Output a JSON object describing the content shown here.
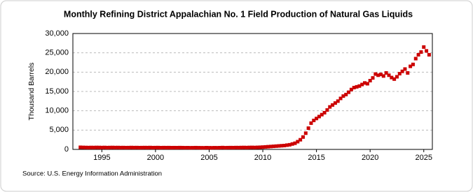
{
  "chart_data": {
    "type": "scatter",
    "title": "Monthly Refining District Appalachian No. 1 Field Production of Natural Gas Liquids",
    "y_label": "Thousand Barrels",
    "source": "Source: U.S. Energy Information Administration",
    "color": "#cc0000",
    "grid": true,
    "xlim": [
      1992.3,
      2025.8
    ],
    "xticks": [
      1995,
      2000,
      2005,
      2010,
      2015,
      2020,
      2025
    ],
    "ylim": [
      0,
      30000
    ],
    "yticks": [
      0,
      {
        "value": 5000,
        "label": "5,000"
      },
      {
        "value": 10000,
        "label": "10,000"
      },
      {
        "value": 15000,
        "label": "15,000"
      },
      {
        "value": 20000,
        "label": "20,000"
      },
      {
        "value": 25000,
        "label": "25,000"
      },
      {
        "value": 30000,
        "label": "30,000"
      }
    ],
    "x": [
      1993,
      1993.25,
      1993.5,
      1993.75,
      1994,
      1994.25,
      1994.5,
      1994.75,
      1995,
      1995.25,
      1995.5,
      1995.75,
      1996,
      1996.25,
      1996.5,
      1996.75,
      1997,
      1997.25,
      1997.5,
      1997.75,
      1998,
      1998.25,
      1998.5,
      1998.75,
      1999,
      1999.25,
      1999.5,
      1999.75,
      2000,
      2000.25,
      2000.5,
      2000.75,
      2001,
      2001.25,
      2001.5,
      2001.75,
      2002,
      2002.25,
      2002.5,
      2002.75,
      2003,
      2003.25,
      2003.5,
      2003.75,
      2004,
      2004.25,
      2004.5,
      2004.75,
      2005,
      2005.25,
      2005.5,
      2005.75,
      2006,
      2006.25,
      2006.5,
      2006.75,
      2007,
      2007.25,
      2007.5,
      2007.75,
      2008,
      2008.25,
      2008.5,
      2008.75,
      2009,
      2009.25,
      2009.5,
      2009.75,
      2010,
      2010.25,
      2010.5,
      2010.75,
      2011,
      2011.25,
      2011.5,
      2011.75,
      2012,
      2012.25,
      2012.5,
      2012.75,
      2013,
      2013.25,
      2013.5,
      2013.75,
      2014,
      2014.25,
      2014.5,
      2014.75,
      2015,
      2015.25,
      2015.5,
      2015.75,
      2016,
      2016.25,
      2016.5,
      2016.75,
      2017,
      2017.25,
      2017.5,
      2017.75,
      2018,
      2018.25,
      2018.5,
      2018.75,
      2019,
      2019.25,
      2019.5,
      2019.75,
      2020,
      2020.25,
      2020.5,
      2020.75,
      2021,
      2021.25,
      2021.5,
      2021.75,
      2022,
      2022.25,
      2022.5,
      2022.75,
      2023,
      2023.25,
      2023.5,
      2023.75,
      2024,
      2024.25,
      2024.5,
      2024.75,
      2025,
      2025.25,
      2025.5
    ],
    "values": [
      550,
      520,
      500,
      480,
      500,
      490,
      510,
      500,
      480,
      500,
      470,
      490,
      500,
      480,
      490,
      470,
      480,
      460,
      470,
      490,
      470,
      480,
      460,
      470,
      480,
      470,
      490,
      460,
      470,
      480,
      450,
      470,
      460,
      470,
      450,
      460,
      450,
      470,
      460,
      440,
      450,
      430,
      440,
      460,
      440,
      430,
      420,
      450,
      430,
      420,
      440,
      430,
      450,
      480,
      440,
      460,
      470,
      460,
      480,
      470,
      490,
      500,
      480,
      510,
      520,
      500,
      530,
      560,
      600,
      650,
      700,
      750,
      800,
      850,
      900,
      950,
      1000,
      1100,
      1200,
      1400,
      1600,
      2000,
      2500,
      3200,
      4200,
      5500,
      6800,
      7500,
      8000,
      8500,
      9000,
      9500,
      10200,
      11000,
      11500,
      12000,
      12500,
      13200,
      13800,
      14200,
      14800,
      15500,
      16000,
      16200,
      16400,
      16800,
      17200,
      17000,
      17800,
      18500,
      19500,
      19200,
      19400,
      19000,
      19800,
      19200,
      18600,
      18200,
      18800,
      19600,
      20200,
      20800,
      19800,
      21500,
      22000,
      23500,
      24500,
      25200,
      26500,
      25500,
      24500
    ]
  }
}
